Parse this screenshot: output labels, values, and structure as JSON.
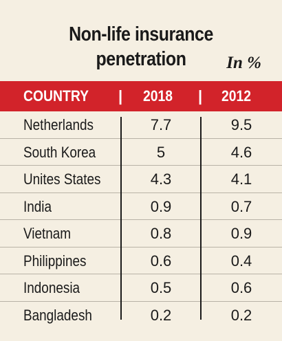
{
  "title": "Non-life insurance penetration",
  "unit": "In %",
  "chart_data": {
    "type": "table",
    "columns": [
      "COUNTRY",
      "2018",
      "2012"
    ],
    "rows": [
      {
        "country": "Netherlands",
        "y2018": "7.7",
        "y2012": "9.5"
      },
      {
        "country": "South Korea",
        "y2018": "5",
        "y2012": "4.6"
      },
      {
        "country": "Unites States",
        "y2018": "4.3",
        "y2012": "4.1"
      },
      {
        "country": "India",
        "y2018": "0.9",
        "y2012": "0.7"
      },
      {
        "country": "Vietnam",
        "y2018": "0.8",
        "y2012": "0.9"
      },
      {
        "country": "Philippines",
        "y2018": "0.6",
        "y2012": "0.4"
      },
      {
        "country": "Indonesia",
        "y2018": "0.5",
        "y2012": "0.6"
      },
      {
        "country": "Bangladesh",
        "y2018": "0.2",
        "y2012": "0.2"
      }
    ]
  },
  "colors": {
    "header_bg": "#d2232a",
    "page_bg": "#f5efe2"
  }
}
